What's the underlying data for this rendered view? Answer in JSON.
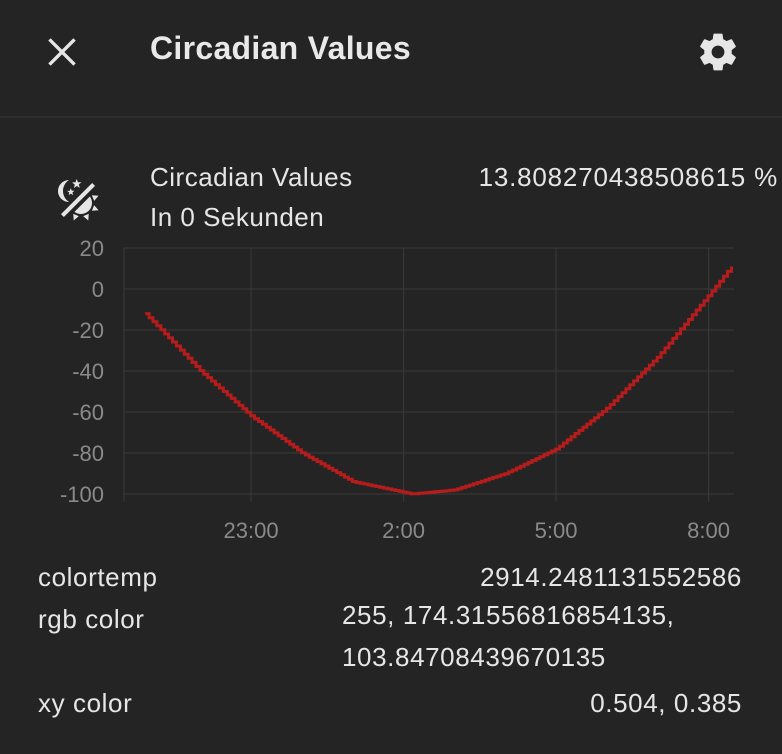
{
  "dialog": {
    "title": "Circadian Values"
  },
  "entity": {
    "icon": "theme-light-dark-icon",
    "name": "Circadian Values",
    "state": "13.808270438508615 %",
    "last_changed": "In 0 Sekunden"
  },
  "chart_data": {
    "type": "line",
    "x_ticks": [
      "23:00",
      "2:00",
      "5:00",
      "8:00"
    ],
    "y_ticks": [
      "20",
      "0",
      "-20",
      "-40",
      "-60",
      "-80",
      "-100"
    ],
    "ylim": [
      -100,
      20
    ],
    "xlim_hours": [
      20.5,
      8.5
    ],
    "grid": true,
    "series": [
      {
        "color": "#b71c1c",
        "points": [
          {
            "t": "20:55",
            "y": -12
          },
          {
            "t": "21:30",
            "y": -27
          },
          {
            "t": "22:00",
            "y": -40
          },
          {
            "t": "23:00",
            "y": -62
          },
          {
            "t": "0:00",
            "y": -80
          },
          {
            "t": "1:00",
            "y": -94
          },
          {
            "t": "2:10",
            "y": -100
          },
          {
            "t": "3:00",
            "y": -98
          },
          {
            "t": "4:00",
            "y": -90
          },
          {
            "t": "5:00",
            "y": -78
          },
          {
            "t": "6:00",
            "y": -58
          },
          {
            "t": "7:00",
            "y": -33
          },
          {
            "t": "8:00",
            "y": -3
          },
          {
            "t": "8:27",
            "y": 11
          }
        ]
      }
    ]
  },
  "attributes": [
    {
      "label": "colortemp",
      "value": "2914.2481131552586"
    },
    {
      "label": "rgb color",
      "value_lines": [
        "255, 174.31556816854135,",
        "103.84708439670135"
      ]
    },
    {
      "label": "xy color",
      "value": "0.504, 0.385"
    }
  ],
  "colors": {
    "background": "#242424",
    "text": "#e6e6e6",
    "axis_text": "#8a8a8a",
    "grid": "#3a3a3a",
    "line": "#b71c1c"
  }
}
